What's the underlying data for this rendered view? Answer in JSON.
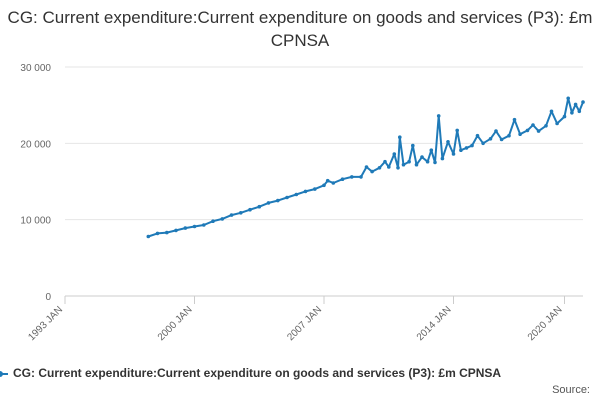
{
  "chart_data": {
    "type": "line",
    "title": "CG: Current expenditure:Current expenditure on goods and services (P3): £m CPNSA",
    "xlabel": "",
    "ylabel": "",
    "x_ticks": [
      "1993 JAN",
      "2000 JAN",
      "2007 JAN",
      "2014 JAN",
      "2020 JAN"
    ],
    "x_tick_years": [
      1993,
      2000,
      2007,
      2014,
      2020
    ],
    "y_ticks": [
      "0",
      "10 000",
      "20 000",
      "30 000"
    ],
    "y_tick_values": [
      0,
      10000,
      20000,
      30000
    ],
    "ylim": [
      0,
      30000
    ],
    "xlim": [
      1993,
      2021
    ],
    "grid": true,
    "legend_position": "bottom",
    "series": [
      {
        "name": "CG: Current expenditure:Current expenditure on goods and services (P3): £m CPNSA",
        "color": "#1f7ab8",
        "points": [
          [
            1997.5,
            7800
          ],
          [
            1998.0,
            8200
          ],
          [
            1998.5,
            8300
          ],
          [
            1999.0,
            8600
          ],
          [
            1999.5,
            8900
          ],
          [
            2000.0,
            9100
          ],
          [
            2000.5,
            9300
          ],
          [
            2001.0,
            9800
          ],
          [
            2001.5,
            10100
          ],
          [
            2002.0,
            10600
          ],
          [
            2002.5,
            10900
          ],
          [
            2003.0,
            11300
          ],
          [
            2003.5,
            11700
          ],
          [
            2004.0,
            12200
          ],
          [
            2004.5,
            12500
          ],
          [
            2005.0,
            12900
          ],
          [
            2005.5,
            13300
          ],
          [
            2006.0,
            13700
          ],
          [
            2006.5,
            14000
          ],
          [
            2007.0,
            14500
          ],
          [
            2007.2,
            15100
          ],
          [
            2007.5,
            14800
          ],
          [
            2008.0,
            15300
          ],
          [
            2008.5,
            15600
          ],
          [
            2009.0,
            15600
          ],
          [
            2009.3,
            16900
          ],
          [
            2009.6,
            16300
          ],
          [
            2010.0,
            16800
          ],
          [
            2010.3,
            17600
          ],
          [
            2010.5,
            16900
          ],
          [
            2010.8,
            18600
          ],
          [
            2011.0,
            16800
          ],
          [
            2011.1,
            20800
          ],
          [
            2011.3,
            17200
          ],
          [
            2011.6,
            17600
          ],
          [
            2011.8,
            19700
          ],
          [
            2012.0,
            17200
          ],
          [
            2012.3,
            18200
          ],
          [
            2012.6,
            17600
          ],
          [
            2012.8,
            19100
          ],
          [
            2013.0,
            17500
          ],
          [
            2013.2,
            23600
          ],
          [
            2013.4,
            18000
          ],
          [
            2013.7,
            20200
          ],
          [
            2014.0,
            18600
          ],
          [
            2014.2,
            21700
          ],
          [
            2014.4,
            19100
          ],
          [
            2014.7,
            19400
          ],
          [
            2015.0,
            19700
          ],
          [
            2015.3,
            21000
          ],
          [
            2015.6,
            20000
          ],
          [
            2016.0,
            20600
          ],
          [
            2016.3,
            21600
          ],
          [
            2016.6,
            20500
          ],
          [
            2017.0,
            21000
          ],
          [
            2017.3,
            23100
          ],
          [
            2017.6,
            21200
          ],
          [
            2018.0,
            21700
          ],
          [
            2018.3,
            22400
          ],
          [
            2018.6,
            21600
          ],
          [
            2019.0,
            22300
          ],
          [
            2019.3,
            24200
          ],
          [
            2019.6,
            22600
          ],
          [
            2020.0,
            23500
          ],
          [
            2020.2,
            25900
          ],
          [
            2020.4,
            24000
          ],
          [
            2020.6,
            25100
          ],
          [
            2020.8,
            24200
          ],
          [
            2021.0,
            25400
          ]
        ]
      }
    ]
  },
  "legend": {
    "label": "CG: Current expenditure:Current expenditure on goods and services (P3): £m CPNSA"
  },
  "footer": {
    "source_label": "Source:"
  }
}
